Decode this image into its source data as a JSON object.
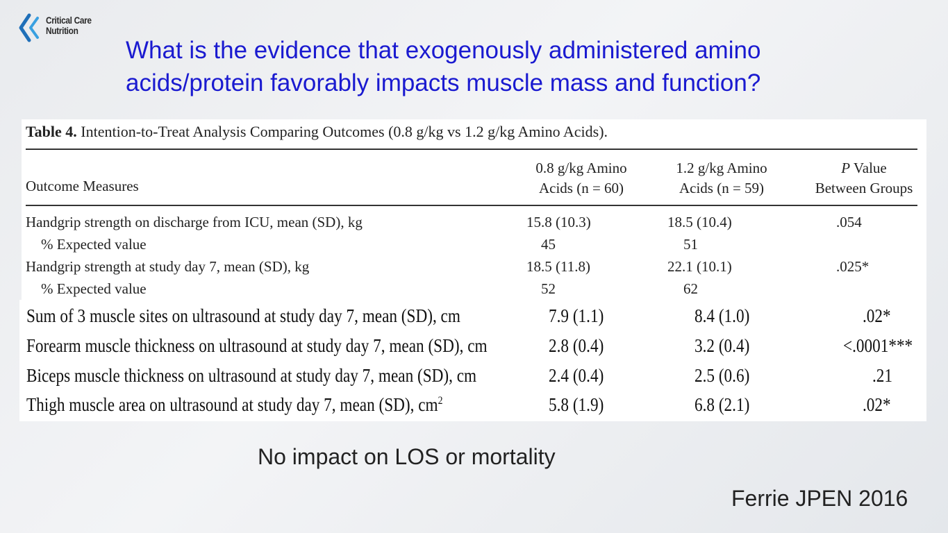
{
  "logo": {
    "line1": "Critical Care",
    "line2": "Nutrition"
  },
  "title": "What is the evidence that exogenously administered amino acids/protein favorably impacts muscle mass and function?",
  "table1": {
    "caption_label": "Table 4.",
    "caption_text": "Intention-to-Treat Analysis Comparing Outcomes (0.8 g/kg vs 1.2 g/kg Amino Acids).",
    "header_outcome": "Outcome Measures",
    "header_col1_line1": "0.8 g/kg Amino",
    "header_col1_line2": "Acids (n = 60)",
    "header_col2_line1": "1.2 g/kg Amino",
    "header_col2_line2": "Acids (n = 59)",
    "header_col3_p": "P",
    "header_col3_line1": " Value",
    "header_col3_line2": "Between Groups",
    "rows": [
      {
        "label": "Handgrip strength on discharge from ICU, mean (SD), kg",
        "v1": "15.8 (10.3)",
        "v2": "18.5 (10.4)",
        "p": ".054"
      },
      {
        "label": "% Expected value",
        "v1": "45",
        "v2": "51",
        "p": ""
      },
      {
        "label": "Handgrip strength at study day 7, mean (SD), kg",
        "v1": "18.5 (11.8)",
        "v2": "22.1 (10.1)",
        "p": ".025*"
      },
      {
        "label": "% Expected value",
        "v1": "52",
        "v2": "62",
        "p": ""
      }
    ]
  },
  "table2": {
    "rows": [
      {
        "label": "Sum of 3 muscle sites on ultrasound at study day 7, mean (SD), cm",
        "v1": "7.9 (1.1)",
        "v2": "8.4 (1.0)",
        "p": ".02*"
      },
      {
        "label": "Forearm muscle thickness on ultrasound at study day 7, mean (SD), cm",
        "v1": "2.8 (0.4)",
        "v2": "3.2 (0.4)",
        "p": "<.0001***"
      },
      {
        "label": "Biceps muscle thickness on ultrasound at study day 7, mean (SD), cm",
        "v1": "2.4 (0.4)",
        "v2": "2.5 (0.6)",
        "p": ".21"
      },
      {
        "label": "Thigh muscle area on ultrasound at study day 7, mean (SD), cm",
        "unit_sup": "2",
        "v1": "5.8 (1.9)",
        "v2": "6.8 (2.1)",
        "p": ".02*"
      }
    ]
  },
  "note": "No impact on LOS or mortality",
  "citation": "Ferrie JPEN 2016"
}
